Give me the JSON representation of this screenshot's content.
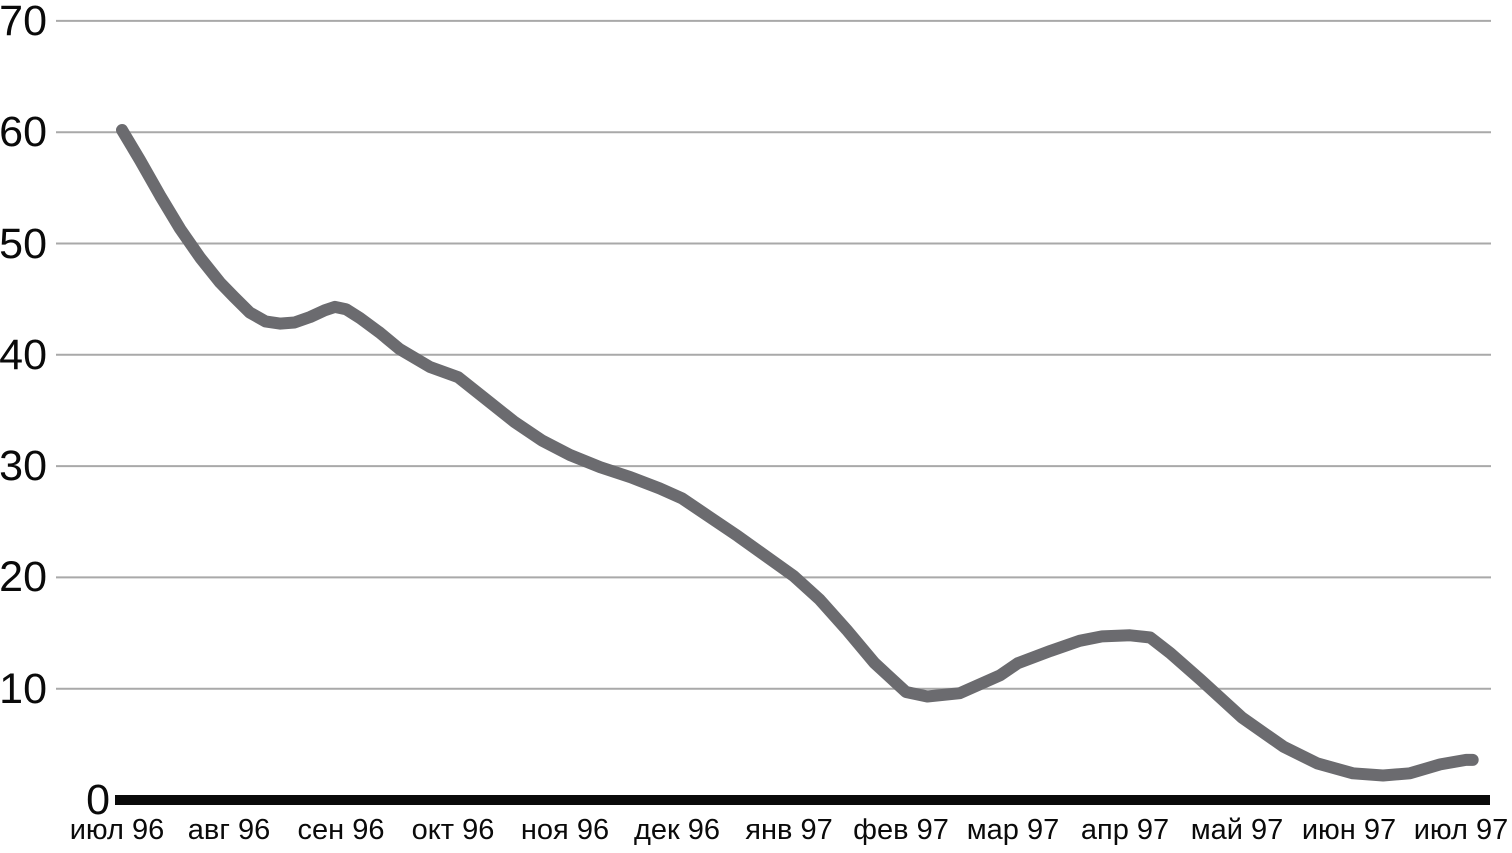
{
  "chart_data": {
    "type": "line",
    "title": "",
    "xlabel": "",
    "ylabel": "",
    "categories": [
      "июл 96",
      "авг 96",
      "сен 96",
      "окт 96",
      "ноя 96",
      "дек 96",
      "янв 97",
      "фев 97",
      "мар 97",
      "апр 97",
      "май 97",
      "июн 97",
      "июл 97"
    ],
    "values": [
      60,
      45,
      44,
      38,
      31,
      27,
      20,
      9.5,
      12,
      15,
      7,
      2,
      3.5
    ],
    "y_ticks": [
      0,
      10,
      20,
      30,
      40,
      50,
      60,
      70
    ],
    "ylim": [
      0,
      70
    ],
    "grid": "horizontal",
    "legend": false,
    "line_color": "#6b6b6f",
    "grid_color": "#a9a9a9",
    "axis_color": "#0a0a0a",
    "background_color": "#ffffff",
    "samples": [
      [
        0,
        60.2
      ],
      [
        0.16,
        57.5
      ],
      [
        0.34,
        54.3
      ],
      [
        0.52,
        51.3
      ],
      [
        0.7,
        48.7
      ],
      [
        0.875,
        46.5
      ],
      [
        1,
        45.2
      ],
      [
        1.14,
        43.8
      ],
      [
        1.28,
        43.0
      ],
      [
        1.41,
        42.8
      ],
      [
        1.54,
        42.9
      ],
      [
        1.68,
        43.4
      ],
      [
        1.81,
        44.0
      ],
      [
        1.9,
        44.3
      ],
      [
        2,
        44.1
      ],
      [
        2.125,
        43.3
      ],
      [
        2.3,
        42.0
      ],
      [
        2.48,
        40.5
      ],
      [
        2.75,
        38.9
      ],
      [
        3,
        38.0
      ],
      [
        3.25,
        36.0
      ],
      [
        3.5,
        34.0
      ],
      [
        3.75,
        32.3
      ],
      [
        4,
        31.0
      ],
      [
        4.27,
        29.9
      ],
      [
        4.54,
        29.0
      ],
      [
        4.8,
        28.0
      ],
      [
        5,
        27.1
      ],
      [
        5.25,
        25.4
      ],
      [
        5.5,
        23.7
      ],
      [
        5.75,
        21.9
      ],
      [
        6,
        20.1
      ],
      [
        6.23,
        18.0
      ],
      [
        6.47,
        15.3
      ],
      [
        6.72,
        12.3
      ],
      [
        7,
        9.7
      ],
      [
        7.19,
        9.3
      ],
      [
        7.48,
        9.6
      ],
      [
        7.84,
        11.2
      ],
      [
        8,
        12.3
      ],
      [
        8.29,
        13.4
      ],
      [
        8.55,
        14.3
      ],
      [
        8.75,
        14.7
      ],
      [
        9,
        14.8
      ],
      [
        9.18,
        14.6
      ],
      [
        9.36,
        13.2
      ],
      [
        9.63,
        10.8
      ],
      [
        10,
        7.4
      ],
      [
        10.37,
        4.8
      ],
      [
        10.67,
        3.3
      ],
      [
        10.99,
        2.4
      ],
      [
        11.26,
        2.2
      ],
      [
        11.5,
        2.4
      ],
      [
        11.77,
        3.2
      ],
      [
        12,
        3.6
      ],
      [
        12.06,
        3.6
      ]
    ]
  }
}
